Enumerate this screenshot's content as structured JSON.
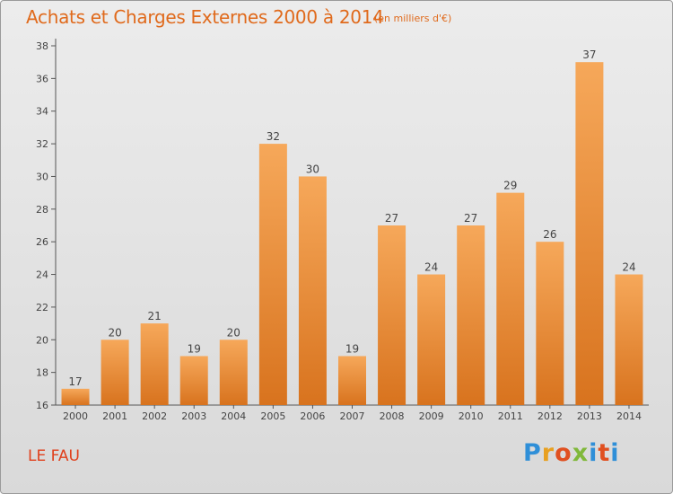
{
  "chart_data": {
    "type": "bar",
    "title": "Achats et Charges Externes 2000 à 2014",
    "subtitle": "(en milliers d'€)",
    "categories": [
      "2000",
      "2001",
      "2002",
      "2003",
      "2004",
      "2005",
      "2006",
      "2007",
      "2008",
      "2009",
      "2010",
      "2011",
      "2012",
      "2013",
      "2014"
    ],
    "values": [
      17,
      20,
      21,
      19,
      20,
      32,
      30,
      19,
      27,
      24,
      27,
      29,
      26,
      37,
      24
    ],
    "ylim": [
      16,
      38
    ],
    "yticks": [
      16,
      18,
      20,
      22,
      24,
      26,
      28,
      30,
      32,
      34,
      36,
      38
    ],
    "grid": false,
    "legend": "none",
    "colors": {
      "bar_light": "#f6a85a",
      "bar_dark": "#d8731e",
      "text": "#444444",
      "title": "#e06a1c"
    }
  },
  "footer": {
    "location": "LE FAU",
    "logo_text": "Proxiti"
  }
}
